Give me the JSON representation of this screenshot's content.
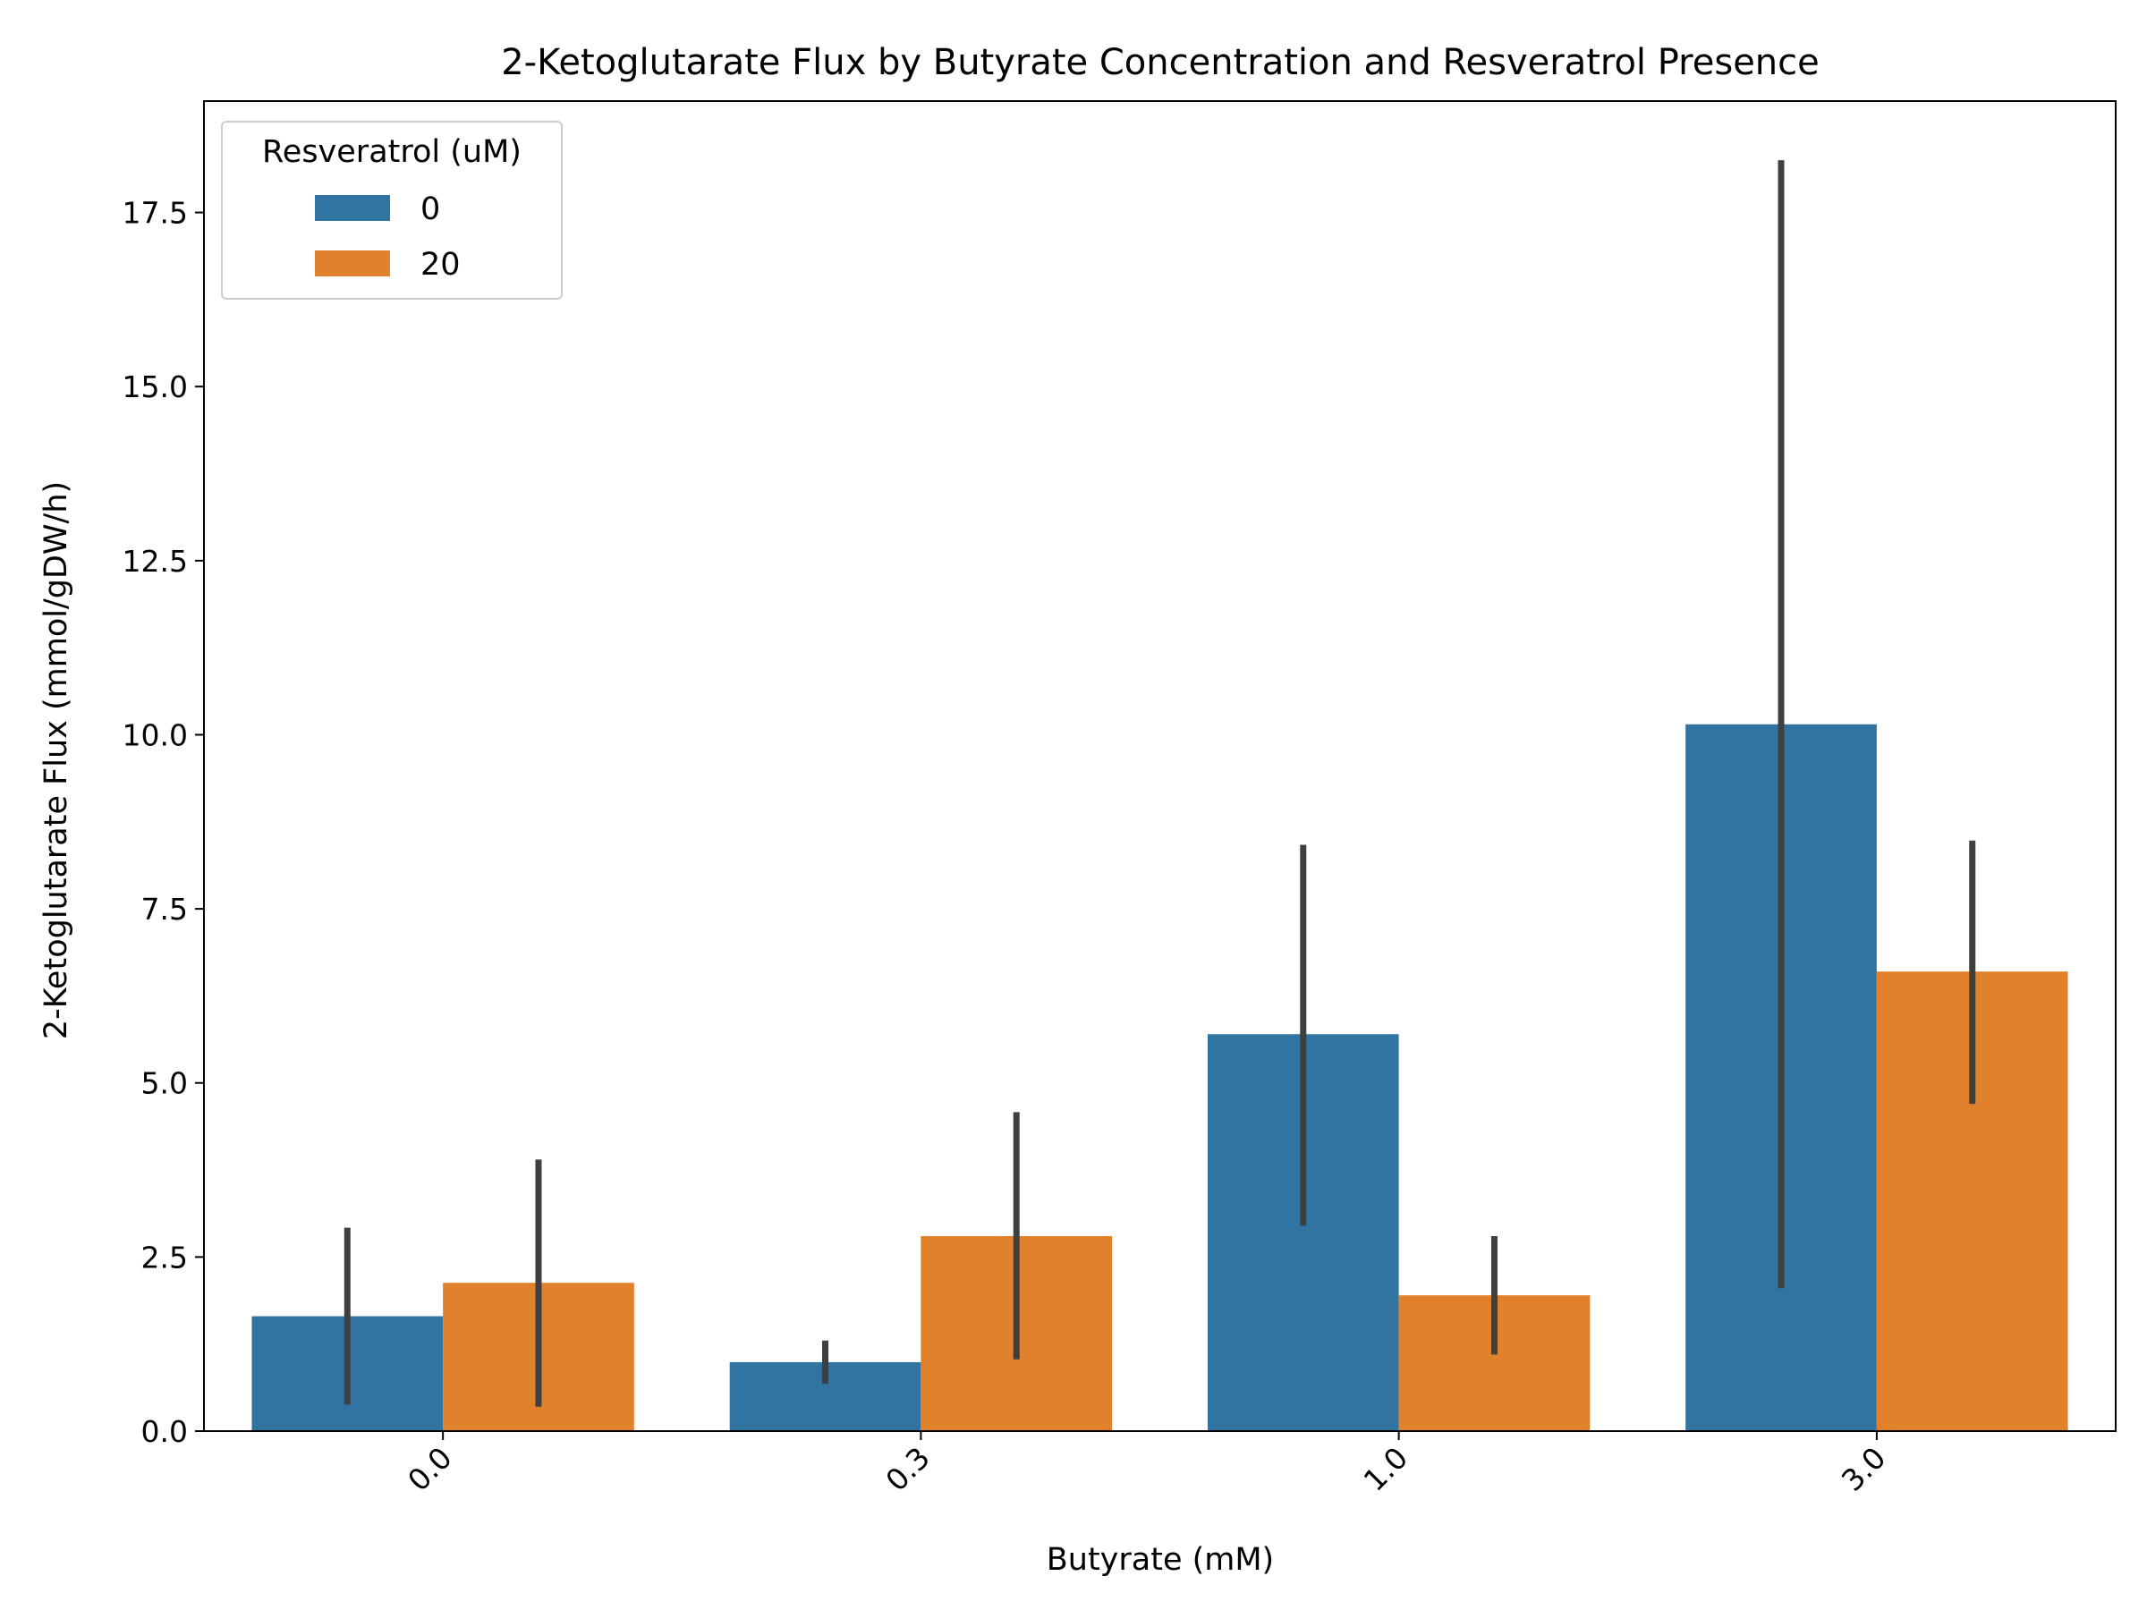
{
  "chart_data": {
    "type": "bar",
    "title": "2-Ketoglutarate Flux by Butyrate Concentration and Resveratrol Presence",
    "xlabel": "Butyrate (mM)",
    "ylabel": "2-Ketoglutarate Flux (mmol/gDW/h)",
    "categories": [
      "0.0",
      "0.3",
      "1.0",
      "3.0"
    ],
    "ylim": [
      0,
      19.1
    ],
    "yticks": [
      "0.0",
      "2.5",
      "5.0",
      "7.5",
      "10.0",
      "12.5",
      "15.0",
      "17.5"
    ],
    "ytick_values": [
      0,
      2.5,
      5,
      7.5,
      10,
      12.5,
      15,
      17.5
    ],
    "grid": false,
    "legend": {
      "title": "Resveratrol (uM)",
      "position": "top-left"
    },
    "series": [
      {
        "name": "0",
        "color": "#3274a1",
        "values": [
          1.65,
          0.99,
          5.7,
          10.15
        ],
        "error_low": [
          0.38,
          0.68,
          2.95,
          2.05
        ],
        "error_high": [
          2.92,
          1.3,
          8.42,
          18.25
        ]
      },
      {
        "name": "20",
        "color": "#e1812c",
        "values": [
          2.13,
          2.8,
          1.95,
          6.6
        ],
        "error_low": [
          0.35,
          1.03,
          1.1,
          4.7
        ],
        "error_high": [
          3.9,
          4.58,
          2.8,
          8.48
        ]
      }
    ],
    "errorbar_color": "#3f3f3f"
  }
}
